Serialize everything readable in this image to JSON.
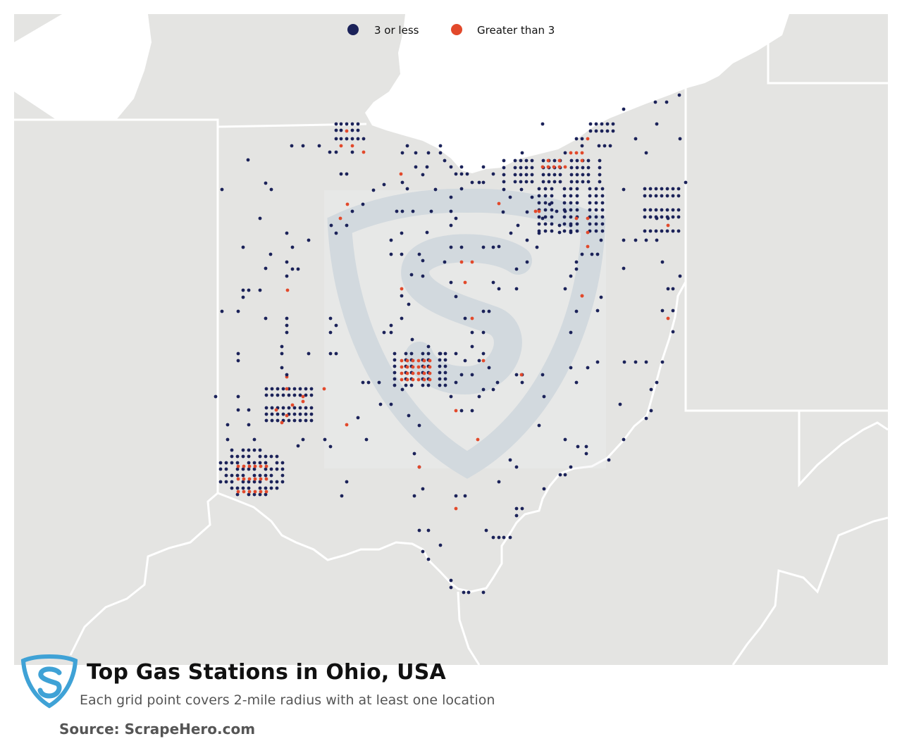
{
  "title": "Top Gas Stations in Ohio, USA",
  "subtitle": "Each grid point covers 2-mile radius with at least one location",
  "source": "Source: ScrapeHero.com",
  "legend": [
    {
      "label": "3 or less",
      "color": "#1b2259"
    },
    {
      "label": "Greater than 3",
      "color": "#e2492b"
    }
  ],
  "colors": {
    "land": "#e4e4e2",
    "water": "#ffffff",
    "borders": "#ffffff",
    "watermark": "#cbd6df",
    "logo": "#3fa2d6"
  },
  "icons": [
    "scrapehero-shield-logo",
    "scrapehero-watermark"
  ]
}
